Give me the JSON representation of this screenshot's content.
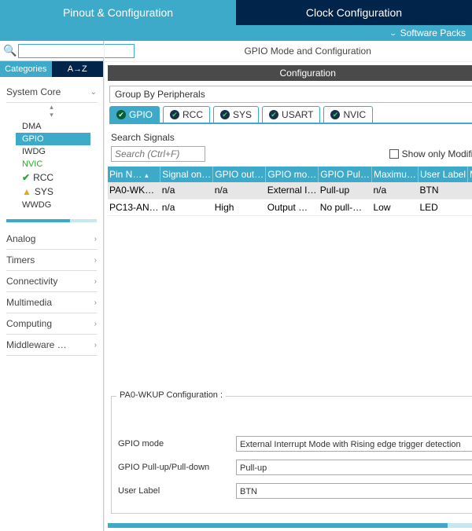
{
  "colors": {
    "primary": "#3caac8",
    "dark": "#01244a",
    "grayBar": "#4a4a4a"
  },
  "mainTabs": {
    "active": "Pinout & Configuration",
    "inactive": "Clock Configuration"
  },
  "softwarePacks": "Software Packs",
  "leftSearch": {
    "placeholder": ""
  },
  "catTabs": {
    "a": "Categories",
    "b": "A→Z"
  },
  "groups": [
    {
      "name": "System Core",
      "expanded": true
    },
    {
      "name": "Analog",
      "expanded": false
    },
    {
      "name": "Timers",
      "expanded": false
    },
    {
      "name": "Connectivity",
      "expanded": false
    },
    {
      "name": "Multimedia",
      "expanded": false
    },
    {
      "name": "Computing",
      "expanded": false
    },
    {
      "name": "Middleware …",
      "expanded": false
    }
  ],
  "systemCoreItems": {
    "dma": "DMA",
    "gpio": "GPIO",
    "iwdg": "IWDG",
    "nvic": "NVIC",
    "rcc": "RCC",
    "sys": "SYS",
    "wwdg": "WWDG"
  },
  "rightTitle": "GPIO Mode and Configuration",
  "configBar": "Configuration",
  "groupBy": "Group By Peripherals",
  "periphTabs": [
    "GPIO",
    "RCC",
    "SYS",
    "USART",
    "NVIC"
  ],
  "searchSignalsLabel": "Search Signals",
  "searchSignalsPlaceholder": "Search (Ctrl+F)",
  "showOnlyModified": "Show only Modified Pins",
  "tableHeaders": [
    "Pin N…",
    "Signal on…",
    "GPIO out…",
    "GPIO mo…",
    "GPIO Pul…",
    "Maximu…",
    "User Label",
    "Modified"
  ],
  "pinRows": [
    {
      "pin": "PA0-WK…",
      "signal": "n/a",
      "out": "n/a",
      "mode": "External I…",
      "pull": "Pull-up",
      "max": "n/a",
      "label": "BTN",
      "modified": true,
      "selected": true
    },
    {
      "pin": "PC13-AN…",
      "signal": "n/a",
      "out": "High",
      "mode": "Output …",
      "pull": "No pull-…",
      "max": "Low",
      "label": "LED",
      "modified": true,
      "selected": false
    }
  ],
  "fieldset": {
    "legend": "PA0-WKUP Configuration :",
    "rows": [
      {
        "label": "GPIO mode",
        "value": "External Interrupt Mode with Rising edge trigger detection"
      },
      {
        "label": "GPIO Pull-up/Pull-down",
        "value": "Pull-up"
      },
      {
        "label": "User Label",
        "value": "BTN"
      }
    ]
  }
}
